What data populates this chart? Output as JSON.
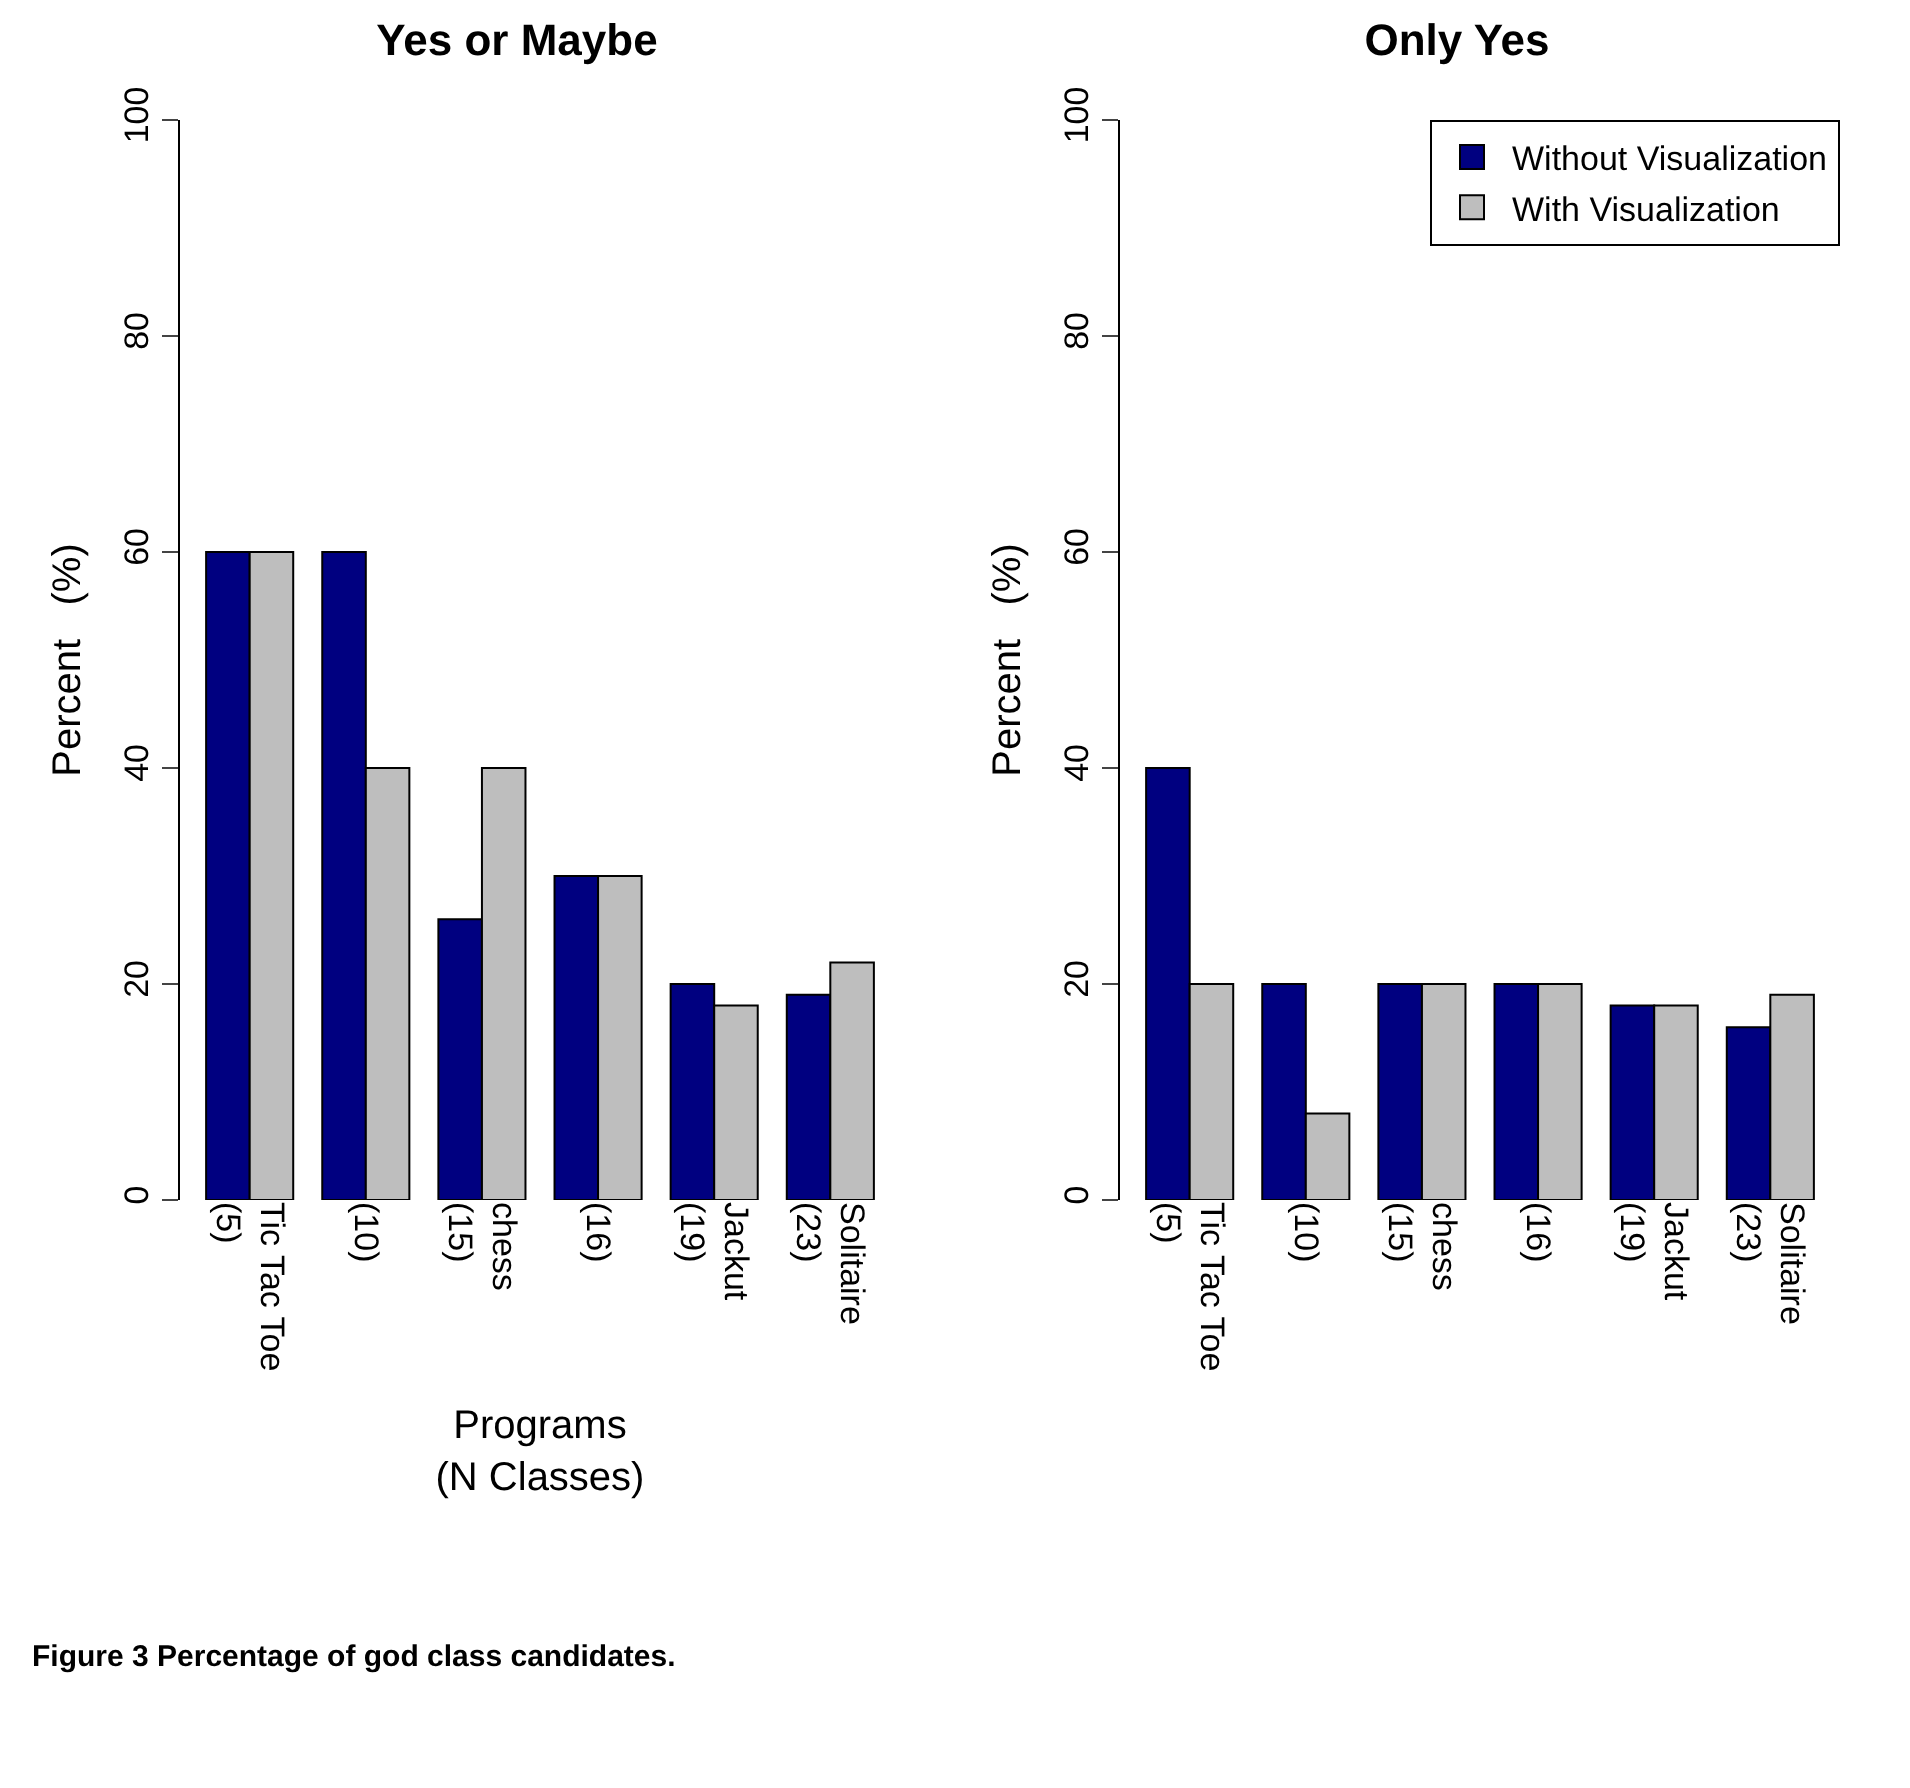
{
  "chart_data": [
    {
      "type": "bar",
      "title": "Yes or Maybe",
      "ylabel": "Percent   (%)",
      "xlabel": "Programs\n(N Classes)",
      "categories": [
        "Tic Tac Toe (5)",
        "(10)",
        "chess (15)",
        "(16)",
        "Jackut (19)",
        "Solitaire (23)"
      ],
      "series": [
        {
          "color": "#000080",
          "values": [
            60,
            60,
            26,
            30,
            20,
            19
          ]
        },
        {
          "color": "#bebebe",
          "values": [
            60,
            40,
            40,
            30,
            18,
            22
          ]
        }
      ],
      "ylim": [
        0,
        100
      ],
      "yticks": [
        0,
        20,
        40,
        60,
        80,
        100
      ],
      "grid": false,
      "legend": false,
      "annotations": [
        "Figure 3 Percentage of god class candidates."
      ]
    },
    {
      "type": "bar",
      "title": "Only Yes",
      "ylabel": "Percent   (%)",
      "categories": [
        "Tic Tac Toe (5)",
        "(10)",
        "chess (15)",
        "(16)",
        "Jackut (19)",
        "Solitaire (23)"
      ],
      "series": [
        {
          "name": "Without Visualization",
          "color": "#000080",
          "values": [
            40,
            20,
            20,
            20,
            18,
            16
          ]
        },
        {
          "name": "With Visualization",
          "color": "#bebebe",
          "values": [
            20,
            8,
            20,
            20,
            18,
            19
          ]
        }
      ],
      "ylim": [
        0,
        100
      ],
      "yticks": [
        0,
        20,
        40,
        60,
        80,
        100
      ],
      "grid": false,
      "legend": "top right"
    }
  ]
}
